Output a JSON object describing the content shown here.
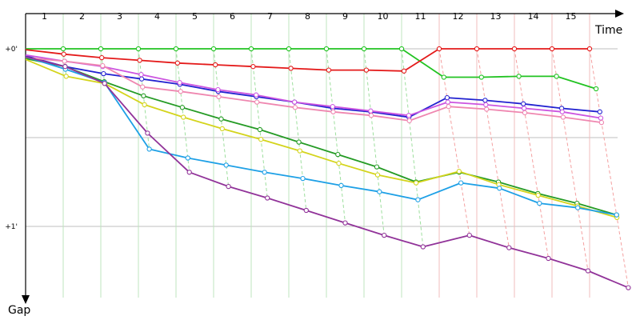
{
  "chart_data": {
    "type": "line",
    "title": "",
    "xlabel": "Time",
    "ylabel": "Gap",
    "x_ticks": [
      "1",
      "2",
      "3",
      "4",
      "5",
      "6",
      "7",
      "8",
      "9",
      "10",
      "11",
      "12",
      "13",
      "14",
      "15"
    ],
    "y_ticks": [
      "+0'",
      "+1'"
    ],
    "grid": true,
    "vertical_gridlines": "green laps 1-11, red laps 12-16",
    "series": [
      {
        "color": "#22c322",
        "values": [
          0,
          0,
          0,
          0,
          0,
          0,
          0,
          0,
          0,
          0,
          0,
          0.16,
          0.16,
          0.155,
          0.155,
          0.225
        ]
      },
      {
        "color": "#e41a1a",
        "values": [
          0.005,
          0.03,
          0.05,
          0.065,
          0.08,
          0.09,
          0.1,
          0.11,
          0.12,
          0.12,
          0.125,
          0,
          0,
          0,
          0,
          0
        ]
      },
      {
        "color": "#2222d0",
        "values": [
          0.04,
          0.1,
          0.14,
          0.17,
          0.2,
          0.24,
          0.27,
          0.3,
          0.335,
          0.355,
          0.385,
          0.275,
          0.29,
          0.31,
          0.335,
          0.355
        ]
      },
      {
        "color": "#cc55e0",
        "values": [
          0.035,
          0.07,
          0.1,
          0.145,
          0.19,
          0.23,
          0.26,
          0.3,
          0.325,
          0.35,
          0.375,
          0.3,
          0.315,
          0.335,
          0.355,
          0.39
        ]
      },
      {
        "color": "#ef87b0",
        "values": [
          0.05,
          0.07,
          0.095,
          0.215,
          0.24,
          0.27,
          0.3,
          0.33,
          0.355,
          0.375,
          0.405,
          0.325,
          0.34,
          0.36,
          0.385,
          0.415
        ]
      },
      {
        "color": "#259b25",
        "values": [
          0.055,
          0.1,
          0.185,
          0.265,
          0.33,
          0.395,
          0.455,
          0.525,
          0.595,
          0.665,
          0.75,
          0.695,
          0.75,
          0.815,
          0.87,
          0.935
        ]
      },
      {
        "color": "#d4d41c",
        "values": [
          0.06,
          0.155,
          0.195,
          0.315,
          0.385,
          0.45,
          0.51,
          0.575,
          0.645,
          0.71,
          0.755,
          0.69,
          0.765,
          0.825,
          0.885,
          0.95
        ]
      },
      {
        "color": "#1ea0e6",
        "values": [
          0.045,
          0.115,
          0.19,
          0.565,
          0.615,
          0.655,
          0.695,
          0.73,
          0.77,
          0.805,
          0.85,
          0.755,
          0.785,
          0.87,
          0.895,
          0.935
        ]
      },
      {
        "color": "#913399",
        "values": [
          0.045,
          0.1,
          0.195,
          0.475,
          0.695,
          0.775,
          0.84,
          0.91,
          0.98,
          1.05,
          1.115,
          1.05,
          1.12,
          1.18,
          1.25,
          1.345
        ]
      }
    ]
  }
}
